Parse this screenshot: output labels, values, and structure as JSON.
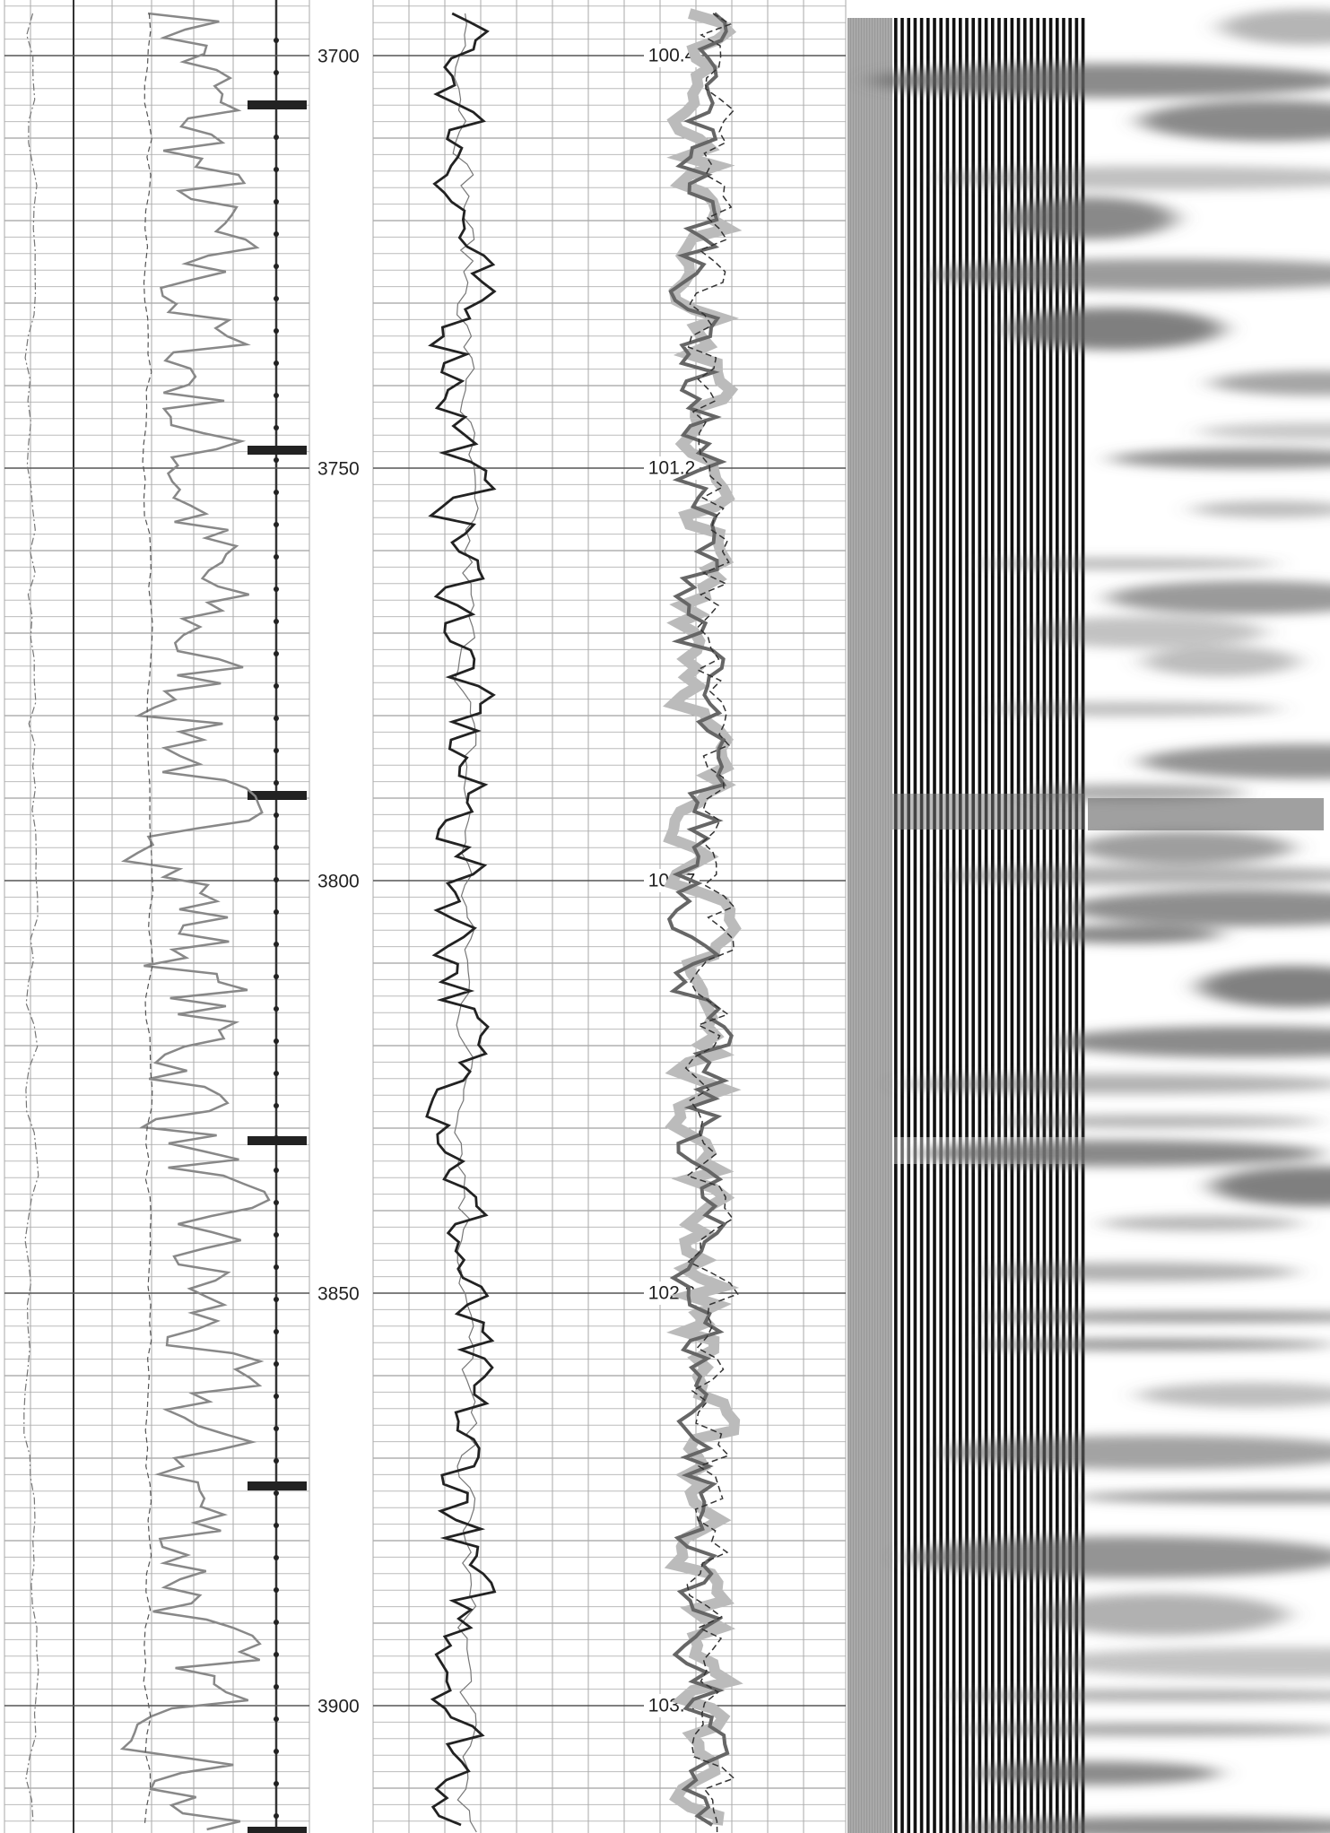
{
  "depth_track": {
    "depth_ticks": [
      3700,
      3750,
      3800,
      3850,
      3900
    ]
  },
  "annotations": [
    "100.4",
    "101.2",
    "101.7",
    "102.3",
    "103.0"
  ]
}
